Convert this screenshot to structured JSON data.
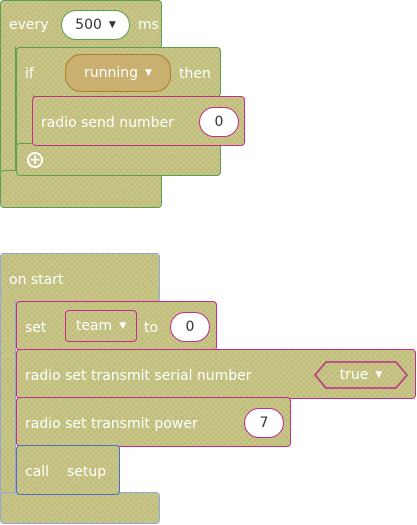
{
  "every_block": {
    "label": "every",
    "interval_value": "500",
    "unit": "ms",
    "if_block": {
      "if_label": "if",
      "condition": "running",
      "then_label": "then",
      "statement": {
        "label": "radio send number",
        "value": "0"
      }
    }
  },
  "start_block": {
    "label": "on start",
    "set_block": {
      "set_label": "set",
      "variable": "team",
      "to_label": "to",
      "value": "0"
    },
    "serial_block": {
      "label": "radio set transmit serial number",
      "value": "true"
    },
    "power_block": {
      "label": "radio set transmit power",
      "value": "7"
    },
    "call_block": {
      "call_label": "call",
      "function": "setup"
    }
  }
}
